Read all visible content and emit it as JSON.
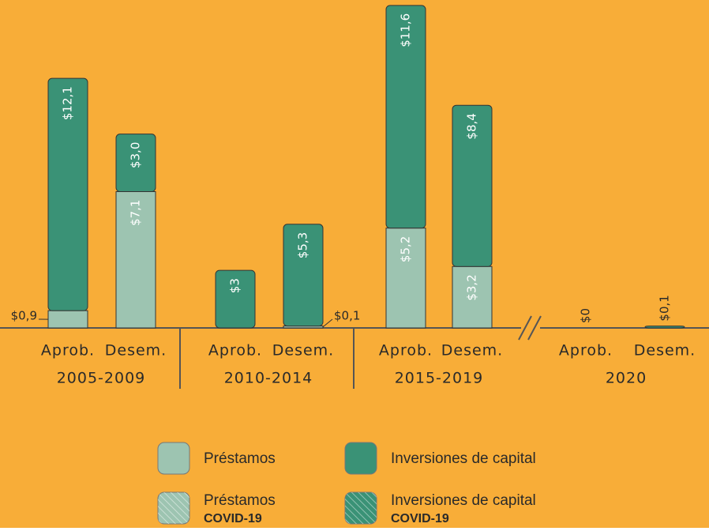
{
  "chart_data": {
    "type": "stacked_bar",
    "groups": [
      "2005-2009",
      "2010-2014",
      "2015-2019",
      "2020"
    ],
    "categories": [
      "Aprob.",
      "Desem.",
      "Aprob.",
      "Desem.",
      "Aprob.",
      "Desem.",
      "Aprob.",
      "Desem."
    ],
    "series": [
      {
        "name": "Préstamos",
        "color": "#9dc4b1",
        "values": [
          0.9,
          7.1,
          null,
          0.1,
          5.2,
          3.2,
          null,
          null
        ],
        "value_labels": [
          "$0,9",
          "$7,1",
          null,
          "$0,1",
          "$5,2",
          "$3,2",
          null,
          null
        ]
      },
      {
        "name": "Inversiones de capital",
        "color": "#3a9276",
        "values": [
          12.1,
          3.0,
          3,
          5.3,
          11.6,
          8.4,
          0,
          0.1
        ],
        "value_labels": [
          "$12,1",
          "$3,0",
          "$3",
          "$5,3",
          "$11,6",
          "$8,4",
          "$0",
          "$0,1"
        ]
      }
    ],
    "covid_legend": [
      {
        "name": "Préstamos",
        "note": "COVID-19",
        "color": "#9dc4b1"
      },
      {
        "name": "Inversiones de capital",
        "note": "COVID-19",
        "color": "#3a9276"
      }
    ],
    "ylim": [
      0,
      17
    ],
    "background": "#f8ad38"
  }
}
